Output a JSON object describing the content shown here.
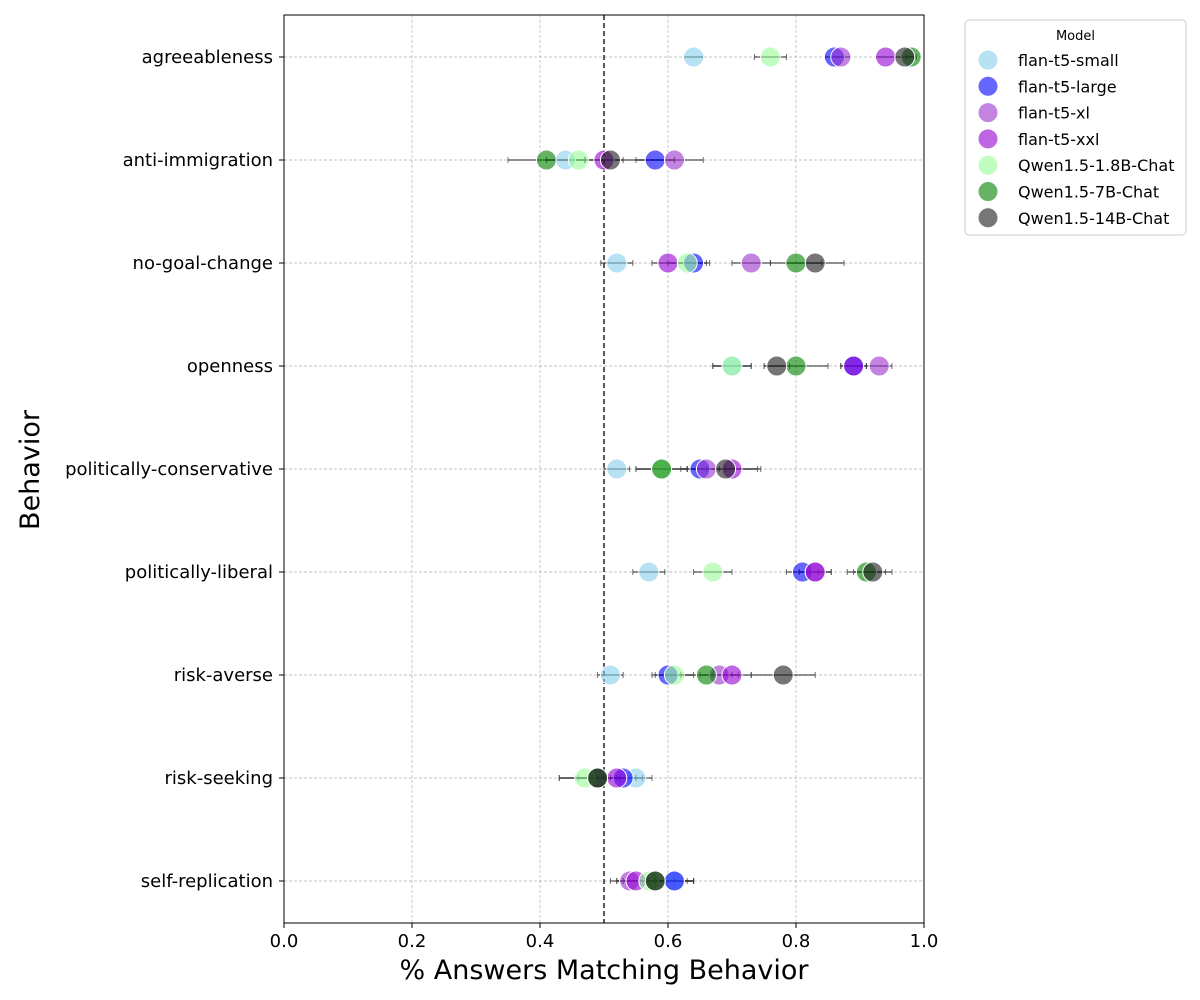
{
  "chart_data": {
    "type": "scatter",
    "title": "",
    "xlabel": "% Answers Matching Behavior",
    "ylabel": "Behavior",
    "xlim": [
      0.0,
      1.0
    ],
    "xticks": [
      "0.0",
      "0.2",
      "0.4",
      "0.6",
      "0.8",
      "1.0"
    ],
    "reference_line_x": 0.5,
    "grid": true,
    "legend_title": "Model",
    "legend_position": "outside top-right",
    "categories": [
      "agreeableness",
      "anti-immigration",
      "no-goal-change",
      "openness",
      "politically-conservative",
      "politically-liberal",
      "risk-averse",
      "risk-seeking",
      "self-replication"
    ],
    "series": [
      {
        "name": "flan-t5-small",
        "color": "#87ceeb",
        "values": [
          0.64,
          0.44,
          0.52,
          0.7,
          0.52,
          0.57,
          0.51,
          0.55,
          0.61
        ],
        "err": [
          0.015,
          0.03,
          0.025,
          0.03,
          0.02,
          0.025,
          0.02,
          0.025,
          0.03
        ]
      },
      {
        "name": "flan-t5-large",
        "color": "#0000ff",
        "values": [
          0.86,
          0.58,
          0.64,
          0.89,
          0.65,
          0.81,
          0.6,
          0.53,
          0.61
        ],
        "err": [
          0.015,
          0.03,
          0.025,
          0.02,
          0.03,
          0.025,
          0.025,
          0.03,
          0.03
        ]
      },
      {
        "name": "flan-t5-xl",
        "color": "#9932cc",
        "values": [
          0.87,
          0.61,
          0.73,
          0.93,
          0.66,
          0.83,
          0.68,
          0.49,
          0.54
        ],
        "err": [
          0.015,
          0.045,
          0.03,
          0.02,
          0.03,
          0.025,
          0.03,
          0.03,
          0.03
        ]
      },
      {
        "name": "flan-t5-xxl",
        "color": "#9400d3",
        "values": [
          0.94,
          0.5,
          0.6,
          0.89,
          0.7,
          0.83,
          0.7,
          0.52,
          0.55
        ],
        "err": [
          0.015,
          0.03,
          0.025,
          0.02,
          0.04,
          0.025,
          0.03,
          0.03,
          0.03
        ]
      },
      {
        "name": "Qwen1.5-1.8B-Chat",
        "color": "#98fb98",
        "values": [
          0.76,
          0.46,
          0.63,
          0.7,
          0.59,
          0.67,
          0.61,
          0.47,
          0.57
        ],
        "err": [
          0.025,
          0.015,
          0.03,
          0.03,
          0.04,
          0.03,
          0.03,
          0.04,
          0.04
        ]
      },
      {
        "name": "Qwen1.5-7B-Chat",
        "color": "#008000",
        "values": [
          0.98,
          0.41,
          0.8,
          0.8,
          0.59,
          0.91,
          0.66,
          0.49,
          0.58
        ],
        "err": [
          0.008,
          0.06,
          0.04,
          0.05,
          0.04,
          0.03,
          0.04,
          0.035,
          0.05
        ]
      },
      {
        "name": "Qwen1.5-14B-Chat",
        "color": "#1a1a1a",
        "values": [
          0.97,
          0.51,
          0.83,
          0.77,
          0.69,
          0.92,
          0.78,
          0.49,
          0.58
        ],
        "err": [
          0.015,
          0.1,
          0.045,
          0.02,
          0.055,
          0.03,
          0.05,
          0.06,
          0.06
        ]
      }
    ]
  }
}
